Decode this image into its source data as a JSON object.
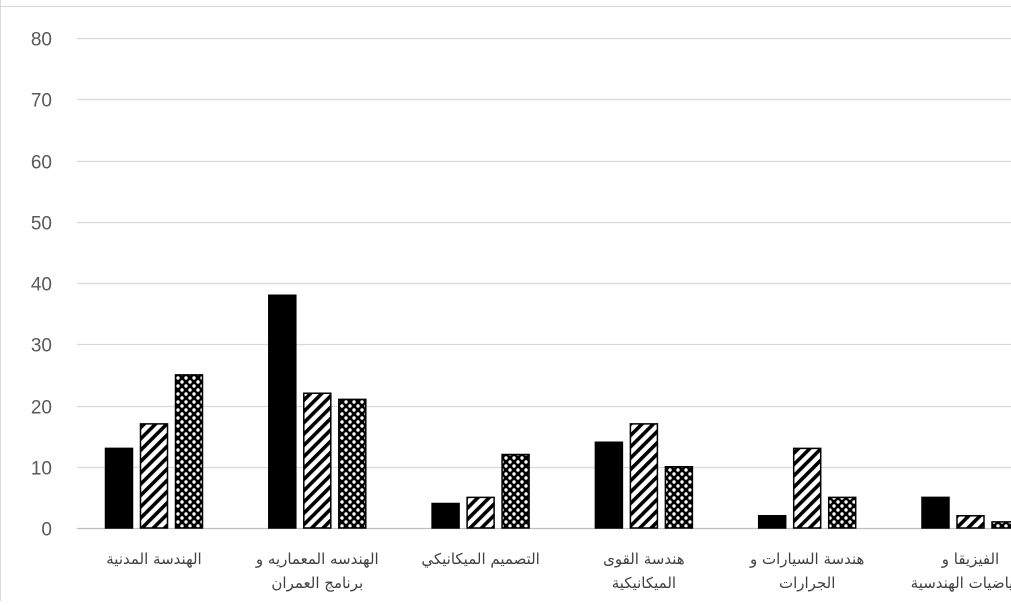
{
  "chart_data": {
    "type": "bar",
    "categories": [
      [
        "الهندسة المدنية"
      ],
      [
        "الهندسه المعماريه و",
        "برنامج العمران"
      ],
      [
        "التصميم الميكانيكي"
      ],
      [
        "هندسة القوى",
        "الميكانيكية"
      ],
      [
        "هندسة السيارات و",
        "الجرارات"
      ],
      [
        "الفيزيقا و",
        "الرياضيات الهندسية"
      ]
    ],
    "series": [
      {
        "pattern": "solid",
        "color": "#000000",
        "values": [
          13,
          38,
          4,
          14,
          2,
          5
        ]
      },
      {
        "pattern": "diagonal-stripes",
        "color": "#000000",
        "values": [
          17,
          22,
          5,
          17,
          13,
          2
        ]
      },
      {
        "pattern": "dotted",
        "color": "#000000",
        "values": [
          25,
          21,
          12,
          10,
          5,
          1
        ]
      }
    ],
    "yticks": [
      0,
      10,
      20,
      30,
      40,
      50,
      60,
      70,
      80
    ],
    "ylim": [
      0,
      80
    ],
    "grid": true,
    "legend": "none"
  }
}
